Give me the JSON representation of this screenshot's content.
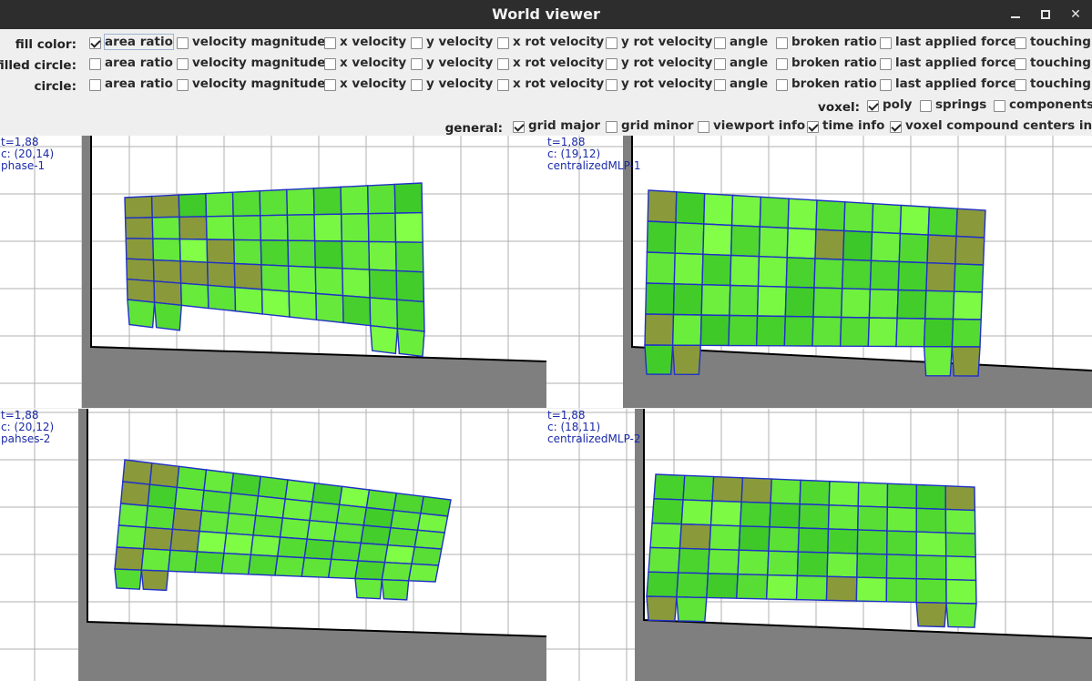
{
  "window": {
    "title": "World viewer"
  },
  "options": [
    "area ratio",
    "velocity magnitude",
    "x velocity",
    "y velocity",
    "x rot velocity",
    "y rot velocity",
    "angle",
    "broken ratio",
    "last applied force",
    "touching"
  ],
  "rows": [
    {
      "label": "fill color:",
      "checked": [
        true,
        false,
        false,
        false,
        false,
        false,
        false,
        false,
        false,
        false
      ]
    },
    {
      "label": "filled circle:",
      "checked": [
        false,
        false,
        false,
        false,
        false,
        false,
        false,
        false,
        false,
        false
      ]
    },
    {
      "label": "circle:",
      "checked": [
        false,
        false,
        false,
        false,
        false,
        false,
        false,
        false,
        false,
        false
      ]
    }
  ],
  "voxel": {
    "label": "voxel:",
    "options": [
      "poly",
      "springs",
      "components"
    ],
    "checked": [
      true,
      false,
      false
    ]
  },
  "general": {
    "label": "general:",
    "options": [
      "grid major",
      "grid minor",
      "viewport info",
      "time info",
      "voxel compound centers info"
    ],
    "checked": [
      true,
      false,
      false,
      true,
      true
    ]
  },
  "panels": [
    {
      "time": "t=1,88",
      "center": "c: (20,14)",
      "name": "phase-1"
    },
    {
      "time": "t=1,88",
      "center": "c: (19,12)",
      "name": "centralizedMLP-1"
    },
    {
      "time": "t=1,88",
      "center": "c: (20,12)",
      "name": "pahses-2"
    },
    {
      "time": "t=1,88",
      "center": "c: (18,11)",
      "name": "centralizedMLP-2"
    }
  ],
  "colors": {
    "ground": "#7f7f7f",
    "wall_edge": "#000000",
    "grid": "#b0b0b0",
    "voxel_edge": "#2030c8",
    "voxel_green": "#33ee33",
    "voxel_olive": "#8a9a3a"
  }
}
